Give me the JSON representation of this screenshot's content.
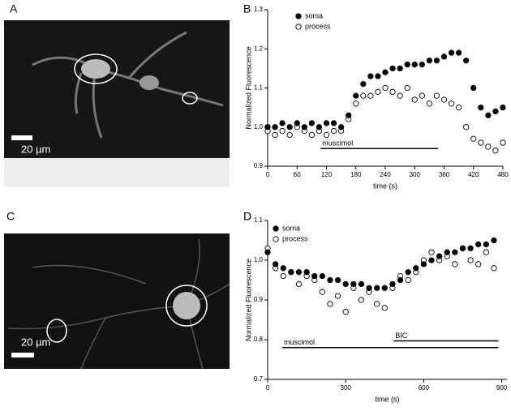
{
  "image_panels": [
    {
      "label": "A",
      "scale_bar": "20 µm"
    },
    {
      "label": "C",
      "scale_bar": "20 µm"
    }
  ],
  "chart_data": [
    {
      "type": "scatter",
      "panel_label": "B",
      "xlabel": "time (s)",
      "ylabel": "Normalized Fluorescence",
      "legend": "upper left",
      "xlim": [
        0,
        480
      ],
      "xticks": [
        0,
        60,
        120,
        180,
        240,
        300,
        360,
        420,
        480
      ],
      "ylim": [
        0.9,
        1.3
      ],
      "yticks": [
        0.9,
        {
          "value": 1,
          "label": "1.0"
        },
        1.1,
        1.2,
        1.3
      ],
      "x": [
        0,
        15,
        30,
        45,
        60,
        75,
        90,
        105,
        120,
        135,
        150,
        165,
        180,
        195,
        210,
        225,
        240,
        255,
        270,
        285,
        300,
        315,
        330,
        345,
        360,
        375,
        390,
        405,
        420,
        435,
        450,
        465,
        480
      ],
      "series": [
        {
          "name": "soma",
          "color": "#000000",
          "values": [
            1.0,
            1.0,
            1.01,
            1.0,
            1.01,
            1.0,
            1.01,
            1.0,
            1.01,
            1.01,
            1.0,
            1.03,
            1.08,
            1.11,
            1.13,
            1.13,
            1.14,
            1.15,
            1.15,
            1.16,
            1.16,
            1.16,
            1.17,
            1.17,
            1.18,
            1.19,
            1.19,
            1.17,
            1.1,
            1.05,
            1.03,
            1.04,
            1.05
          ]
        },
        {
          "name": "process",
          "color": "#ffffff",
          "values": [
            0.99,
            0.98,
            0.99,
            0.98,
            1.0,
            0.99,
            0.98,
            0.99,
            0.98,
            0.99,
            0.99,
            1.02,
            1.06,
            1.08,
            1.08,
            1.09,
            1.1,
            1.09,
            1.08,
            1.1,
            1.07,
            1.08,
            1.06,
            1.08,
            1.07,
            1.06,
            1.05,
            1.0,
            0.97,
            0.96,
            0.95,
            0.94,
            0.96
          ]
        }
      ],
      "annotations": [
        {
          "text": "muscimol",
          "x": [
            108,
            348
          ],
          "y": 0.945
        }
      ]
    },
    {
      "type": "scatter",
      "panel_label": "D",
      "xlabel": "time (s)",
      "ylabel": "Normalized Fluorescence",
      "legend": "upper left",
      "xlim": [
        0,
        920
      ],
      "xticks": [
        0,
        300,
        600,
        900
      ],
      "ylim": [
        0.7,
        1.1
      ],
      "yticks": [
        0.7,
        0.8,
        0.9,
        {
          "value": 1,
          "label": "1.0"
        },
        1.1
      ],
      "x": [
        0,
        30,
        60,
        90,
        120,
        150,
        180,
        210,
        240,
        270,
        300,
        330,
        360,
        390,
        420,
        450,
        480,
        510,
        540,
        570,
        600,
        630,
        660,
        690,
        720,
        750,
        780,
        810,
        840,
        870
      ],
      "series": [
        {
          "name": "soma",
          "color": "#000000",
          "values": [
            1.02,
            0.99,
            0.98,
            0.97,
            0.97,
            0.97,
            0.96,
            0.96,
            0.95,
            0.95,
            0.94,
            0.94,
            0.94,
            0.93,
            0.93,
            0.93,
            0.94,
            0.95,
            0.97,
            0.98,
            0.99,
            1.0,
            1.01,
            1.02,
            1.02,
            1.03,
            1.03,
            1.04,
            1.04,
            1.05
          ]
        },
        {
          "name": "process",
          "color": "#ffffff",
          "values": [
            1.03,
            0.98,
            0.96,
            0.97,
            0.94,
            0.96,
            0.95,
            0.92,
            0.89,
            0.91,
            0.87,
            0.93,
            0.9,
            0.92,
            0.89,
            0.88,
            0.93,
            0.96,
            0.95,
            0.97,
            1.0,
            1.02,
            1.0,
            1.01,
            0.99,
            1.03,
            1.0,
            0.99,
            1.02,
            0.98
          ]
        }
      ],
      "annotations": [
        {
          "text": "muscimol",
          "x": [
            56,
            887
          ],
          "y": 0.78
        },
        {
          "text": "BIC",
          "x": [
            484,
            887
          ],
          "y": 0.797
        }
      ]
    }
  ]
}
